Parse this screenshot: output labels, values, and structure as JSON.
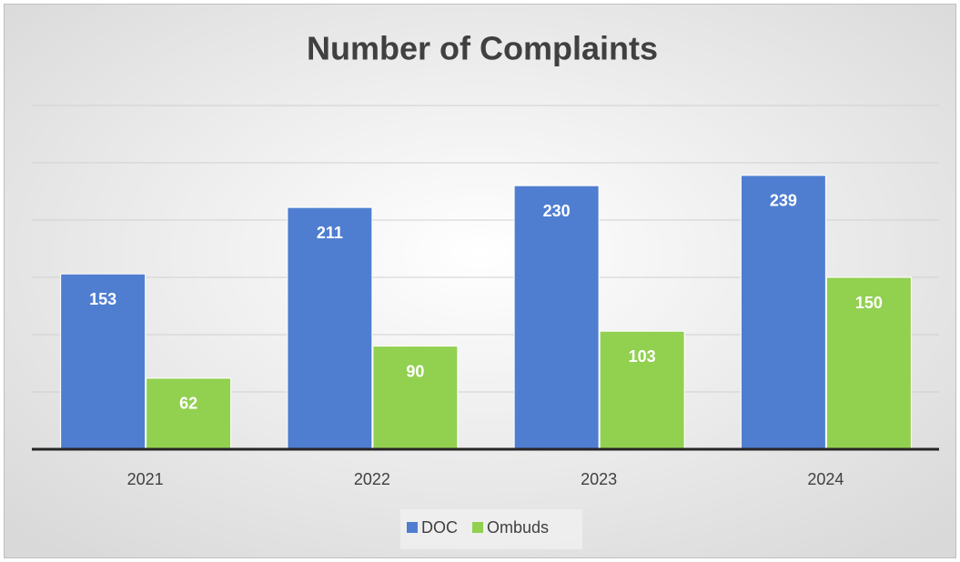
{
  "chart_data": {
    "type": "bar",
    "title": "Number of Complaints",
    "categories": [
      "2021",
      "2022",
      "2023",
      "2024"
    ],
    "series": [
      {
        "name": "DOC",
        "color": "#4f7ed0",
        "values": [
          153,
          211,
          230,
          239
        ]
      },
      {
        "name": "Ombuds",
        "color": "#92d050",
        "values": [
          62,
          90,
          103,
          150
        ]
      }
    ],
    "ylim": [
      0,
      300
    ],
    "yticks": [
      0,
      50,
      100,
      150,
      200,
      250,
      300
    ],
    "grid": true,
    "legend": "bottom"
  }
}
